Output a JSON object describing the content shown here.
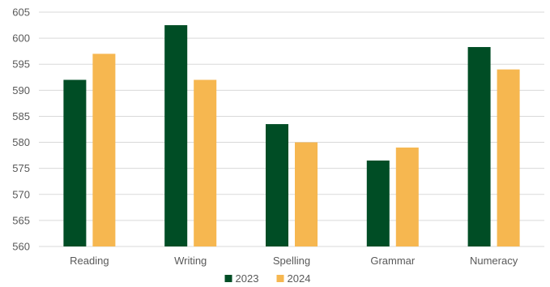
{
  "chart_data": {
    "type": "bar",
    "categories": [
      "Reading",
      "Writing",
      "Spelling",
      "Grammar",
      "Numeracy"
    ],
    "series": [
      {
        "name": "2023",
        "color": "#004d25",
        "values": [
          592,
          602.5,
          583.5,
          576.5,
          598.3
        ]
      },
      {
        "name": "2024",
        "color": "#f6b750",
        "values": [
          597,
          592,
          580,
          579,
          594
        ]
      }
    ],
    "ylim": [
      560,
      605
    ],
    "yticks": [
      560,
      565,
      570,
      575,
      580,
      585,
      590,
      595,
      600,
      605
    ],
    "grid": true,
    "legend_position": "bottom",
    "title": "",
    "xlabel": "",
    "ylabel": ""
  }
}
